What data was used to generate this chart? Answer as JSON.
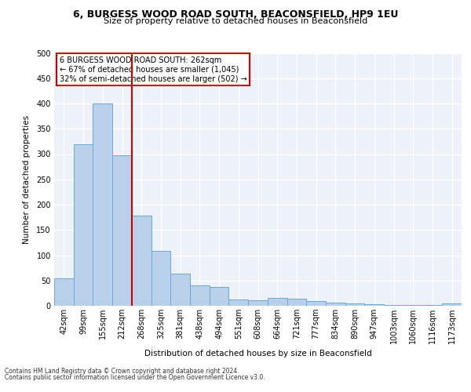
{
  "title1": "6, BURGESS WOOD ROAD SOUTH, BEACONSFIELD, HP9 1EU",
  "title2": "Size of property relative to detached houses in Beaconsfield",
  "xlabel": "Distribution of detached houses by size in Beaconsfield",
  "ylabel": "Number of detached properties",
  "categories": [
    "42sqm",
    "99sqm",
    "155sqm",
    "212sqm",
    "268sqm",
    "325sqm",
    "381sqm",
    "438sqm",
    "494sqm",
    "551sqm",
    "608sqm",
    "664sqm",
    "721sqm",
    "777sqm",
    "834sqm",
    "890sqm",
    "947sqm",
    "1003sqm",
    "1060sqm",
    "1116sqm",
    "1173sqm"
  ],
  "values": [
    55,
    320,
    400,
    298,
    178,
    108,
    63,
    40,
    37,
    12,
    11,
    15,
    14,
    9,
    6,
    5,
    3,
    2,
    1,
    1,
    4
  ],
  "bar_color": "#b8d0ea",
  "bar_edge_color": "#6aaad4",
  "vline_color": "#cc0000",
  "annotation_lines": [
    "6 BURGESS WOOD ROAD SOUTH: 262sqm",
    "← 67% of detached houses are smaller (1,045)",
    "32% of semi-detached houses are larger (502) →"
  ],
  "annotation_box_color": "#ffffff",
  "annotation_box_edge": "#cc0000",
  "footer1": "Contains HM Land Registry data © Crown copyright and database right 2024.",
  "footer2": "Contains public sector information licensed under the Open Government Licence v3.0.",
  "ylim": [
    0,
    500
  ],
  "yticks": [
    0,
    50,
    100,
    150,
    200,
    250,
    300,
    350,
    400,
    450,
    500
  ],
  "bg_color": "#edf2f9",
  "grid_color": "#ffffff",
  "title1_fontsize": 9.0,
  "title2_fontsize": 8.0,
  "xlabel_fontsize": 7.5,
  "ylabel_fontsize": 7.5,
  "tick_fontsize": 7.0,
  "footer_fontsize": 5.5,
  "ann_fontsize": 7.0
}
